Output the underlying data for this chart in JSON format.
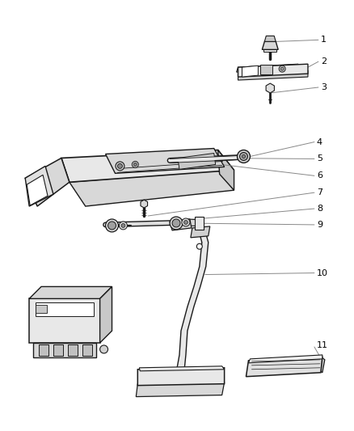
{
  "background_color": "#ffffff",
  "line_color": "#1a1a1a",
  "leader_line_color": "#888888",
  "label_color": "#000000",
  "figsize": [
    4.38,
    5.33
  ],
  "dpi": 100
}
